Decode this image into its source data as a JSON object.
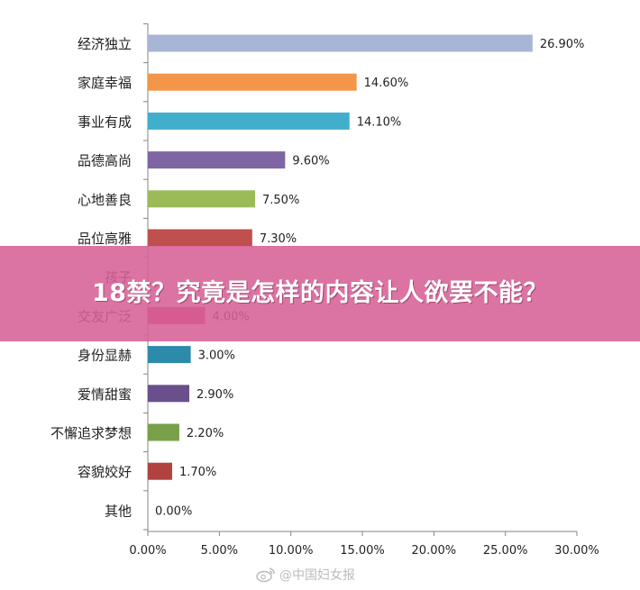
{
  "chart_data": {
    "type": "bar",
    "orientation": "horizontal",
    "categories": [
      "经济独立",
      "家庭幸福",
      "事业有成",
      "品德高尚",
      "心地善良",
      "品位高雅",
      "孩子",
      "交友广泛",
      "身份显赫",
      "爱情甜蜜",
      "不懈追求梦想",
      "容貌姣好",
      "其他"
    ],
    "values": [
      26.9,
      14.6,
      14.1,
      9.6,
      7.5,
      7.3,
      null,
      4.0,
      3.0,
      2.9,
      2.2,
      1.7,
      0.0
    ],
    "value_labels": [
      "26.90%",
      "14.60%",
      "14.10%",
      "9.60%",
      "7.50%",
      "7.30%",
      "",
      "4.00%",
      "3.00%",
      "2.90%",
      "2.20%",
      "1.70%",
      "0.00%"
    ],
    "bar_colors": [
      "#a7b5d6",
      "#f4964a",
      "#41aecb",
      "#8065a4",
      "#9bbb59",
      "#c0504d",
      "#8065a4",
      "#d0475d",
      "#2c8bab",
      "#6b4f8c",
      "#77a049",
      "#b04240",
      "#a7b5d6"
    ],
    "x_ticks": [
      "0.00%",
      "5.00%",
      "10.00%",
      "15.00%",
      "20.00%",
      "25.00%",
      "30.00%"
    ],
    "xlim": [
      0,
      30
    ],
    "grid": false,
    "title": "",
    "xlabel": "",
    "ylabel": ""
  },
  "overlay": {
    "headline": "18禁？究竟是怎样的内容让人欲罢不能？",
    "banner_color": "#d66096"
  },
  "watermark": {
    "text": "@中国妇女报",
    "icon": "weibo-icon"
  }
}
